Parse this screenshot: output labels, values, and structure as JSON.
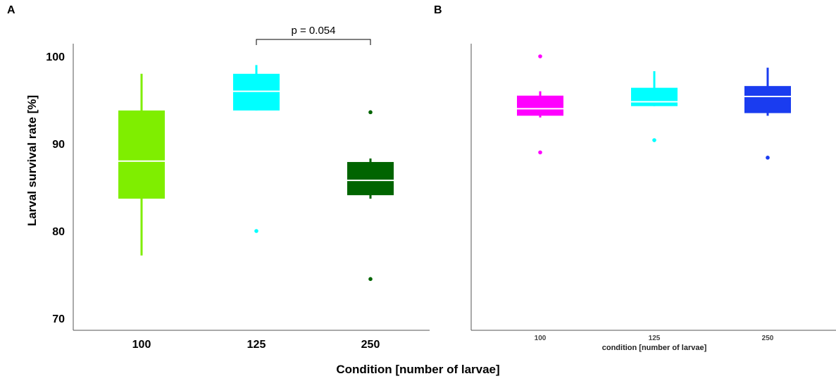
{
  "panels": {
    "a_letter": "A",
    "b_letter": "B"
  },
  "labels": {
    "ylabel": "Larval survival rate [%]",
    "xlabel": "Condition [number of larvae]",
    "xlabel_b": "condition [number of larvae]"
  },
  "chart_data": [
    {
      "type": "box",
      "panel": "A",
      "categories": [
        "100",
        "125",
        "250"
      ],
      "ylim": [
        68,
        102
      ],
      "yticks": [
        70,
        80,
        90,
        100
      ],
      "colors": [
        "#7fee00",
        "#00ffff",
        "#006400"
      ],
      "boxes": [
        {
          "whisker_low": 77.2,
          "q1": 83.7,
          "median": 88.0,
          "q3": 93.8,
          "whisker_high": 98.0,
          "outliers": []
        },
        {
          "whisker_low": 93.8,
          "q1": 93.8,
          "median": 96.0,
          "q3": 98.0,
          "whisker_high": 99.0,
          "outliers": [
            80.0
          ]
        },
        {
          "whisker_low": 83.7,
          "q1": 84.1,
          "median": 85.8,
          "q3": 87.9,
          "whisker_high": 88.3,
          "outliers": [
            93.6,
            74.5
          ]
        }
      ],
      "annotation": {
        "text": "p = 0.054",
        "from": "125",
        "to": "250"
      }
    },
    {
      "type": "box",
      "panel": "B",
      "categories": [
        "100",
        "125",
        "250"
      ],
      "ylim": [
        68,
        102
      ],
      "colors": [
        "#ff00ff",
        "#00ffff",
        "#1a3cf0"
      ],
      "boxes": [
        {
          "whisker_low": 93.0,
          "q1": 93.2,
          "median": 94.0,
          "q3": 95.5,
          "whisker_high": 96.0,
          "outliers": [
            100.0,
            89.0
          ]
        },
        {
          "whisker_low": 94.3,
          "q1": 94.3,
          "median": 94.8,
          "q3": 96.4,
          "whisker_high": 98.3,
          "outliers": [
            90.4
          ]
        },
        {
          "whisker_low": 93.2,
          "q1": 93.5,
          "median": 95.4,
          "q3": 96.6,
          "whisker_high": 98.7,
          "outliers": [
            88.4
          ]
        }
      ]
    }
  ]
}
